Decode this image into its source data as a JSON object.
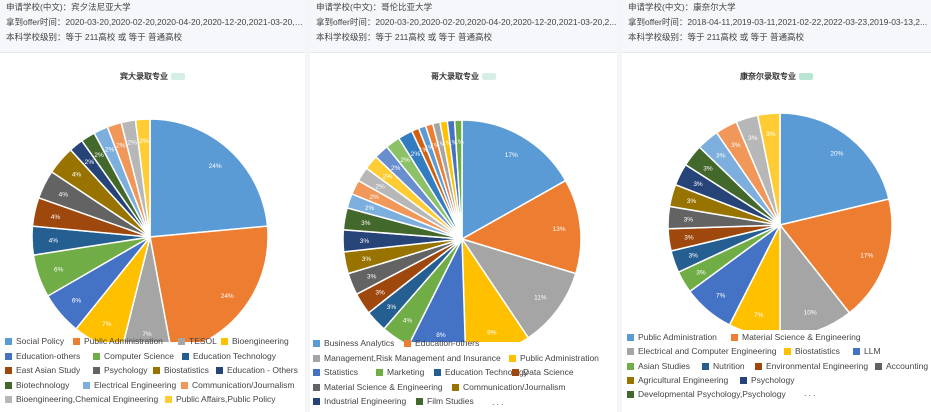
{
  "palette": [
    "#5b9bd5",
    "#ed7d31",
    "#a5a5a5",
    "#ffc000",
    "#4472c4",
    "#70ad47",
    "#255e91",
    "#9e480e",
    "#636363",
    "#997300",
    "#264478",
    "#43682b",
    "#7cafdd",
    "#f1975a",
    "#b7b7b7",
    "#ffcd33",
    "#698ed0",
    "#8cc168",
    "#327dc2",
    "#d26012"
  ],
  "panels": [
    {
      "info": {
        "school": "申请学校(中文)：宾夕法尼亚大学",
        "offer_time": "拿到offer时间：2020-03-20,2020-02-20,2020-04-20,2020-12-20,2021-03-20,2...",
        "level": "本科学校级别：等于 211高校 或 等于 普通高校"
      },
      "title": "宾大录取专业",
      "badge_color": "#d5efe6",
      "more": ""
    },
    {
      "info": {
        "school": "申请学校(中文)：哥伦比亚大学",
        "offer_time": "拿到offer时间：2020-03-20,2020-02-20,2020-04-20,2020-12-20,2021-03-20,2...",
        "level": "本科学校级别：等于 211高校 或 等于 普通高校"
      },
      "title": "哥大录取专业",
      "badge_color": "#d5efe6",
      "more": "..."
    },
    {
      "info": {
        "school": "申请学校(中文)：康奈尔大学",
        "offer_time": "拿到offer时间：2018-04-11,2019-03-11,2021-02-22,2022-03-23,2019-03-13,2...",
        "level": "本科学校级别：等于 211高校 或 等于 普通高校"
      },
      "title": "康奈尔录取专业",
      "badge_color": "#b8e6d2",
      "more": "..."
    }
  ],
  "chart_data": [
    {
      "type": "pie",
      "title": "宾大录取专业",
      "categories": [
        "Social Policy",
        "Public Administration",
        "TESOL",
        "Bioengineering",
        "Education-others",
        "Computer Science",
        "Education Technology",
        "East Asian Study",
        "Psychology",
        "Biostatistics",
        "Education - Others",
        "Biotechnology",
        "Electrical Engineering",
        "Communication/Journalism",
        "Bioengineering,Chemical Engineering",
        "Public Affairs,Public Policy"
      ],
      "values": [
        24,
        24,
        7,
        7,
        6,
        6,
        4,
        4,
        4,
        4,
        2,
        2,
        2,
        2,
        2,
        2
      ],
      "labels": [
        "24%",
        "24%",
        "7%",
        "7%",
        "6%",
        "6%",
        "4%",
        "4%",
        "4%",
        "4%",
        "2%",
        "2%",
        "2%",
        "2%",
        "2%",
        "2%"
      ],
      "legend": "bottom"
    },
    {
      "type": "pie",
      "title": "哥大录取专业",
      "categories": [
        "Business Analytics",
        "Education-others",
        "Management,Risk Management and Insurance",
        "Public Administration",
        "Statistics",
        "Marketing",
        "Education Technology",
        "Data Science",
        "Material Science & Engineering",
        "Communication/Journalism",
        "Industrial Engineering",
        "Film Studies",
        "",
        "",
        "",
        "",
        "",
        "",
        "",
        "",
        "",
        "",
        "",
        "",
        "",
        ""
      ],
      "values": [
        17,
        13,
        11,
        9,
        8,
        4,
        3,
        3,
        3,
        3,
        3,
        3,
        2,
        2,
        2,
        2,
        2,
        2,
        2,
        1,
        1,
        1,
        1,
        1,
        1,
        1
      ],
      "labels": [
        "17%",
        "13%",
        "11%",
        "9%",
        "8%",
        "4%",
        "3%",
        "3%",
        "3%",
        "3%",
        "3%",
        "3%",
        "2%",
        "2%",
        "2%",
        "2%",
        "2%",
        "2%",
        "2%",
        "1%",
        "1%",
        "1%",
        "1%",
        "1%",
        "1%",
        "1%"
      ],
      "legend_count": 12,
      "legend": "bottom"
    },
    {
      "type": "pie",
      "title": "康奈尔录取专业",
      "categories": [
        "Public Administration",
        "Material Science & Engineering",
        "Electrical and Computer Engineering",
        "Biostatistics",
        "LLM",
        "Asian Studies",
        "Nutrition",
        "Environmental Engineering",
        "Accounting",
        "Agricultural Engineering",
        "Psychology",
        "Developmental Psychology,Psychology",
        "",
        "",
        "",
        ""
      ],
      "values": [
        20,
        17,
        10,
        7,
        7,
        3,
        3,
        3,
        3,
        3,
        3,
        3,
        3,
        3,
        3,
        3
      ],
      "labels": [
        "20%",
        "17%",
        "10%",
        "7%",
        "7%",
        "3%",
        "3%",
        "3%",
        "3%",
        "3%",
        "3%",
        "3%",
        "3%",
        "3%",
        "3%",
        "3%"
      ],
      "legend_count": 12,
      "legend": "bottom"
    }
  ]
}
